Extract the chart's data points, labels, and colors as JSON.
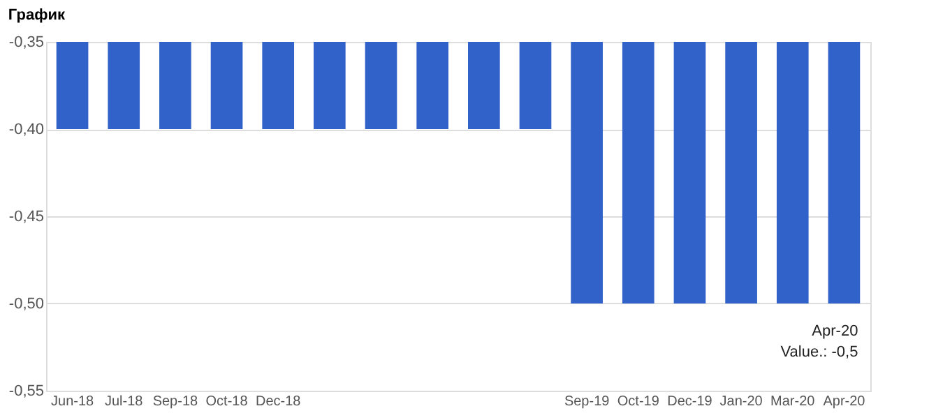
{
  "chart_data": {
    "type": "bar",
    "title": "График",
    "categories": [
      "Jun-18",
      "Jul-18",
      "Sep-18",
      "Oct-18",
      "Dec-18",
      null,
      null,
      null,
      null,
      null,
      "Sep-19",
      "Oct-19",
      "Dec-19",
      "Jan-20",
      "Mar-20",
      "Apr-20"
    ],
    "values": [
      -0.4,
      -0.4,
      -0.4,
      -0.4,
      -0.4,
      -0.4,
      -0.4,
      -0.4,
      -0.4,
      -0.4,
      -0.5,
      -0.5,
      -0.5,
      -0.5,
      -0.5,
      -0.5
    ],
    "color": "#3162c9",
    "ylim": [
      -0.55,
      -0.35
    ],
    "yticks": [
      {
        "value": -0.55,
        "label": "-0,55"
      },
      {
        "value": -0.5,
        "label": "-0,50"
      },
      {
        "value": -0.45,
        "label": "-0,45"
      },
      {
        "value": -0.4,
        "label": "-0,40"
      },
      {
        "value": -0.35,
        "label": "-0,35"
      }
    ],
    "grid": "y",
    "annotations": [
      {
        "text": "Apr-20\nValue.: -0,5",
        "x": "Apr-20",
        "y": -0.5
      }
    ]
  }
}
